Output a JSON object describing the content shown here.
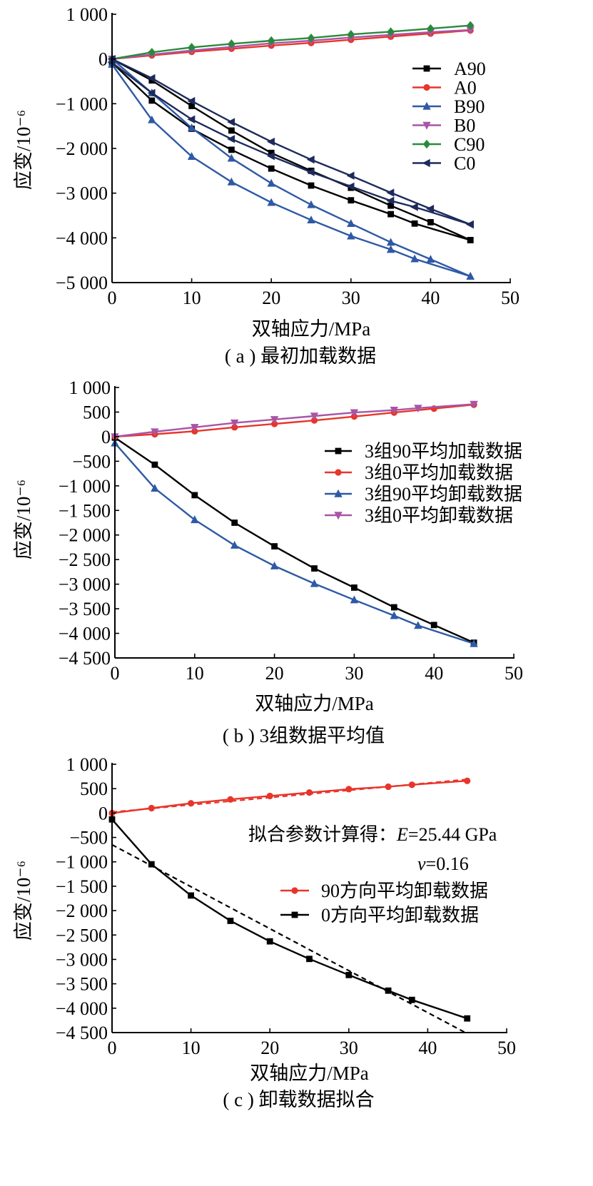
{
  "chart_data": [
    {
      "type": "line",
      "caption": "( a ) 最初加载数据",
      "xlabel": "双轴应力/MPa",
      "ylabel": "应变/10⁻⁶",
      "xlim": [
        0,
        50
      ],
      "ylim": [
        -5000,
        1000
      ],
      "xticks": [
        0,
        10,
        20,
        30,
        40,
        50
      ],
      "yticks": [
        1000,
        0,
        -1000,
        -2000,
        -3000,
        -4000,
        -5000
      ],
      "xtick_labels": [
        "0",
        "10",
        "20",
        "30",
        "40",
        "50"
      ],
      "ytick_labels": [
        "1 000",
        "0",
        "−1 000",
        "−2 000",
        "−3 000",
        "−4 000",
        "−5 000"
      ],
      "legend_position": "right",
      "series": [
        {
          "name": "A90",
          "color": "#000000",
          "marker": "square",
          "legend": true,
          "x": [
            0,
            5,
            10,
            15,
            20,
            25,
            30,
            35,
            40,
            45
          ],
          "y": [
            0,
            -480,
            -1050,
            -1600,
            -2100,
            -2500,
            -2880,
            -3280,
            -3650,
            -4050
          ]
        },
        {
          "name": "A90",
          "color": "#000000",
          "marker": "square",
          "legend": false,
          "x": [
            0,
            5,
            10,
            15,
            20,
            25,
            30,
            35,
            38,
            45
          ],
          "y": [
            -80,
            -930,
            -1560,
            -2030,
            -2450,
            -2830,
            -3160,
            -3470,
            -3680,
            -4050
          ]
        },
        {
          "name": "A0",
          "color": "#e8352b",
          "marker": "circle",
          "legend": true,
          "x": [
            0,
            5,
            10,
            15,
            20,
            25,
            30,
            35,
            40,
            45
          ],
          "y": [
            0,
            80,
            160,
            230,
            300,
            360,
            430,
            500,
            570,
            640
          ]
        },
        {
          "name": "B90",
          "color": "#2e59a5",
          "marker": "triangle-up",
          "legend": true,
          "x": [
            0,
            5,
            10,
            15,
            20,
            25,
            30,
            35,
            40,
            45
          ],
          "y": [
            0,
            -760,
            -1540,
            -2220,
            -2780,
            -3260,
            -3680,
            -4100,
            -4480,
            -4860
          ]
        },
        {
          "name": "B90",
          "color": "#2e59a5",
          "marker": "triangle-up",
          "legend": false,
          "x": [
            0,
            5,
            10,
            15,
            20,
            25,
            30,
            35,
            38,
            45
          ],
          "y": [
            -120,
            -1360,
            -2180,
            -2750,
            -3210,
            -3600,
            -3960,
            -4260,
            -4470,
            -4860
          ]
        },
        {
          "name": "B0",
          "color": "#a855a5",
          "marker": "triangle-down",
          "legend": true,
          "x": [
            0,
            5,
            10,
            15,
            20,
            25,
            30,
            35,
            40,
            45
          ],
          "y": [
            0,
            100,
            190,
            270,
            350,
            410,
            480,
            540,
            600,
            650
          ]
        },
        {
          "name": "C90",
          "color": "#2a8a3c",
          "marker": "diamond",
          "legend": true,
          "x": [
            0,
            5,
            10,
            15,
            20,
            25,
            30,
            35,
            40,
            45
          ],
          "y": [
            0,
            150,
            260,
            340,
            410,
            470,
            550,
            610,
            680,
            750
          ]
        },
        {
          "name": "C0",
          "color": "#1d2a5c",
          "marker": "triangle-left",
          "legend": true,
          "x": [
            0,
            5,
            10,
            15,
            20,
            25,
            30,
            35,
            40,
            45
          ],
          "y": [
            0,
            -430,
            -940,
            -1410,
            -1850,
            -2250,
            -2610,
            -2990,
            -3350,
            -3700
          ]
        },
        {
          "name": "C0",
          "color": "#1d2a5c",
          "marker": "triangle-left",
          "legend": false,
          "x": [
            0,
            5,
            10,
            15,
            20,
            25,
            30,
            35,
            38,
            45
          ],
          "y": [
            -80,
            -760,
            -1350,
            -1790,
            -2170,
            -2530,
            -2850,
            -3170,
            -3310,
            -3700
          ]
        }
      ]
    },
    {
      "type": "line",
      "caption": "( b ) 3组数据平均值",
      "xlabel": "双轴应力/MPa",
      "ylabel": "应变/10⁻⁶",
      "xlim": [
        0,
        50
      ],
      "ylim": [
        -4500,
        1000
      ],
      "xticks": [
        0,
        10,
        20,
        30,
        40,
        50
      ],
      "yticks": [
        1000,
        500,
        0,
        -500,
        -1000,
        -1500,
        -2000,
        -2500,
        -3000,
        -3500,
        -4000,
        -4500
      ],
      "xtick_labels": [
        "0",
        "10",
        "20",
        "30",
        "40",
        "50"
      ],
      "ytick_labels": [
        "1 000",
        "500",
        "0",
        "−500",
        "−1 000",
        "−1 500",
        "−2 000",
        "−2 500",
        "−3 000",
        "−3 500",
        "−4 000",
        "−4 500"
      ],
      "legend_position": "right",
      "series": [
        {
          "name": "3组90平均加载数据",
          "color": "#000000",
          "marker": "square",
          "legend": true,
          "x": [
            0,
            5,
            10,
            15,
            20,
            25,
            30,
            35,
            40,
            45
          ],
          "y": [
            -20,
            -570,
            -1190,
            -1750,
            -2230,
            -2680,
            -3070,
            -3470,
            -3830,
            -4190
          ]
        },
        {
          "name": "3组0平均加载数据",
          "color": "#e8352b",
          "marker": "circle",
          "legend": true,
          "x": [
            0,
            5,
            10,
            15,
            20,
            25,
            30,
            35,
            40,
            45
          ],
          "y": [
            0,
            50,
            110,
            190,
            260,
            330,
            410,
            490,
            570,
            650
          ]
        },
        {
          "name": "3组90平均卸载数据",
          "color": "#2e59a5",
          "marker": "triangle-up",
          "legend": true,
          "x": [
            0,
            5,
            10,
            15,
            20,
            25,
            30,
            35,
            38,
            45
          ],
          "y": [
            -130,
            -1050,
            -1690,
            -2210,
            -2630,
            -2990,
            -3320,
            -3640,
            -3840,
            -4210
          ]
        },
        {
          "name": "3组0平均卸载数据",
          "color": "#a855a5",
          "marker": "triangle-down",
          "legend": true,
          "x": [
            0,
            5,
            10,
            15,
            20,
            25,
            30,
            35,
            38,
            45
          ],
          "y": [
            0,
            100,
            190,
            280,
            350,
            420,
            490,
            540,
            580,
            660
          ]
        }
      ]
    },
    {
      "type": "line",
      "caption": "( c ) 卸载数据拟合",
      "xlabel": "双轴应力/MPa",
      "ylabel": "应变/10⁻⁶",
      "xlim": [
        0,
        50
      ],
      "ylim": [
        -4500,
        1000
      ],
      "xticks": [
        0,
        10,
        20,
        30,
        40,
        50
      ],
      "yticks": [
        1000,
        500,
        0,
        -500,
        -1000,
        -1500,
        -2000,
        -2500,
        -3000,
        -3500,
        -4000,
        -4500
      ],
      "xtick_labels": [
        "0",
        "10",
        "20",
        "30",
        "40",
        "50"
      ],
      "ytick_labels": [
        "1 000",
        "500",
        "0",
        "−500",
        "−1 000",
        "−1 500",
        "−2 000",
        "−2 500",
        "−3 000",
        "−3 500",
        "−4 000",
        "−4 500"
      ],
      "legend_position": "center-right",
      "annotation_line1_prefix": "拟合参数计算得：",
      "annotation_line1_var": "E",
      "annotation_line1_value": "=25.44 GPa",
      "annotation_line2_var": "ν",
      "annotation_line2_value": "=0.16",
      "series": [
        {
          "name": "90方向平均卸载数据",
          "color": "#e8352b",
          "marker": "circle",
          "legend": true,
          "x": [
            0,
            5,
            10,
            15,
            20,
            25,
            30,
            35,
            38,
            45
          ],
          "y": [
            0,
            100,
            200,
            280,
            350,
            420,
            490,
            540,
            580,
            660
          ]
        },
        {
          "name": "0方向平均卸载数据",
          "color": "#000000",
          "marker": "square",
          "legend": true,
          "x": [
            0,
            5,
            10,
            15,
            20,
            25,
            30,
            35,
            38,
            45
          ],
          "y": [
            -130,
            -1050,
            -1690,
            -2210,
            -2630,
            -2990,
            -3320,
            -3640,
            -3830,
            -4210
          ]
        },
        {
          "name": "",
          "color": "#e8352b",
          "marker": "none",
          "dashed": true,
          "legend": false,
          "x": [
            0,
            45
          ],
          "y": [
            20,
            690
          ]
        },
        {
          "name": "",
          "color": "#000000",
          "marker": "none",
          "dashed": true,
          "legend": false,
          "x": [
            0,
            45
          ],
          "y": [
            -650,
            -4520
          ]
        }
      ]
    }
  ]
}
